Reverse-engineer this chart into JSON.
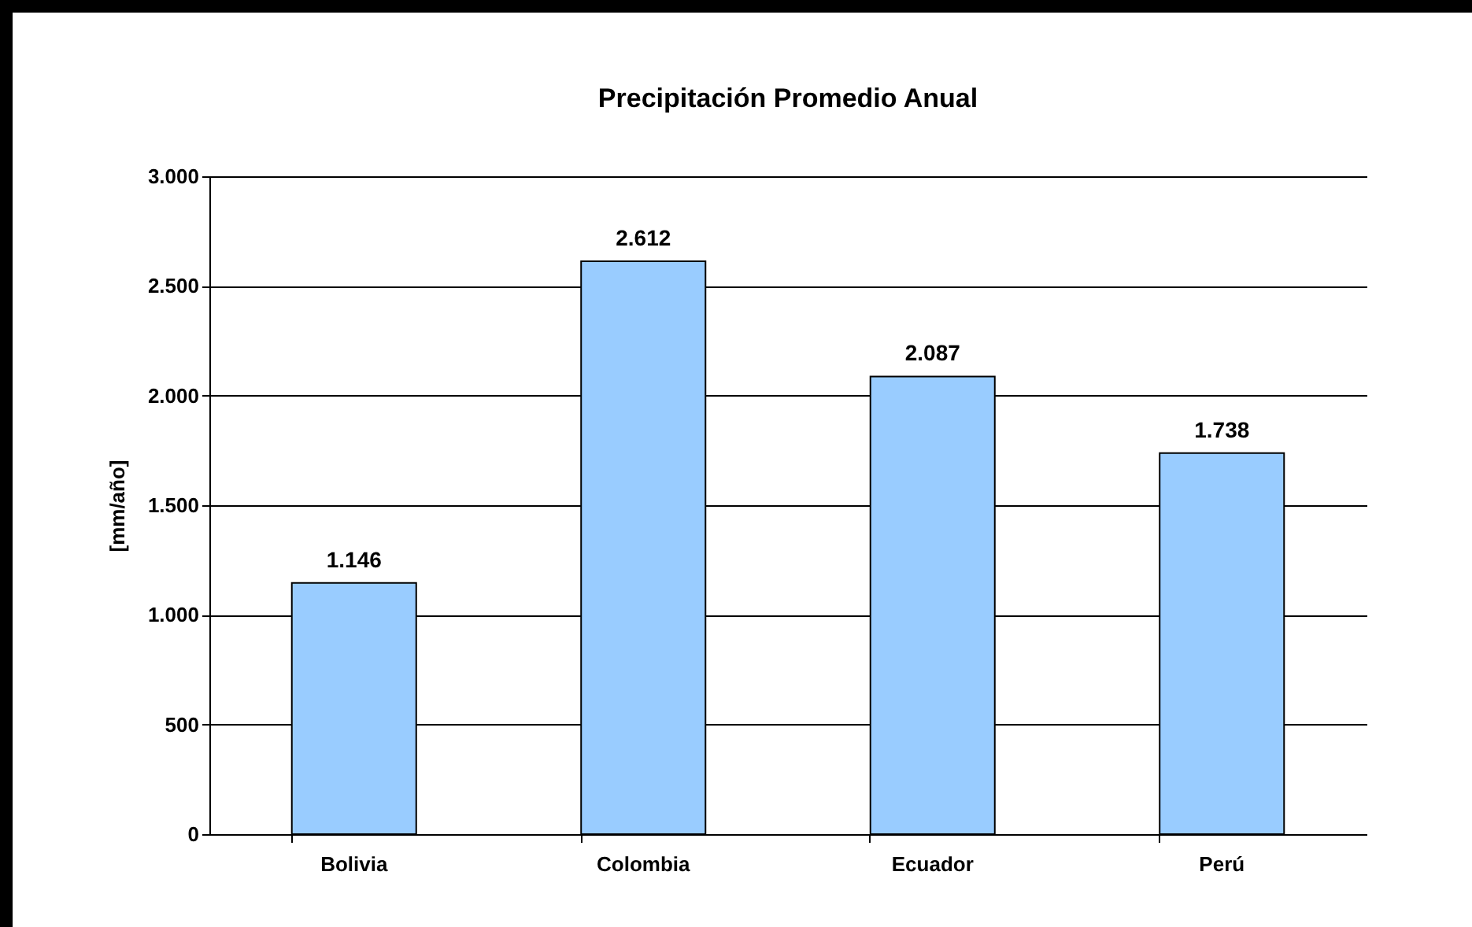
{
  "chart_data": {
    "type": "bar",
    "title": "Precipitación Promedio Anual",
    "ylabel": "[mm/año]",
    "categories": [
      "Bolivia",
      "Colombia",
      "Ecuador",
      "Perú"
    ],
    "values": [
      1146,
      2612,
      2087,
      1738
    ],
    "color": "#99ccff",
    "value_labels": [
      "1.146",
      "2.612",
      "2.087",
      "1.738"
    ],
    "ylim": [
      0,
      3000
    ],
    "yticks": [
      0,
      500,
      {
        "value": 1000,
        "label": "1.000"
      },
      {
        "value": 1500,
        "label": "1.500"
      },
      {
        "value": 2000,
        "label": "2.000"
      },
      {
        "value": 2500,
        "label": "2.500"
      },
      {
        "value": 3000,
        "label": "3.000"
      }
    ],
    "grid": "y"
  }
}
